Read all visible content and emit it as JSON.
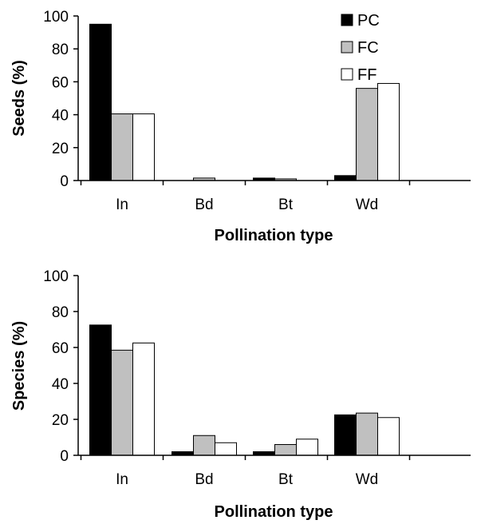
{
  "chart_data": [
    {
      "type": "bar",
      "categories": [
        "In",
        "Bd",
        "Bt",
        "Wd"
      ],
      "series": [
        {
          "name": "PC",
          "color": "#000000",
          "values": [
            95,
            0,
            1.5,
            3
          ]
        },
        {
          "name": "FC",
          "color": "#c0c0c0",
          "values": [
            40.5,
            1.5,
            1,
            56
          ]
        },
        {
          "name": "FF",
          "color": "#ffffff",
          "values": [
            40.5,
            0,
            0,
            59
          ]
        }
      ],
      "xlabel": "Pollination type",
      "ylabel": "Seeds (%)",
      "ylim": [
        0,
        100
      ],
      "yticks": [
        "0",
        "20",
        "40",
        "60",
        "80",
        "100"
      ],
      "legend": "top-right",
      "grid": false
    },
    {
      "type": "bar",
      "categories": [
        "In",
        "Bd",
        "Bt",
        "Wd"
      ],
      "series": [
        {
          "name": "PC",
          "color": "#000000",
          "values": [
            72.5,
            2,
            2,
            22.5
          ]
        },
        {
          "name": "FC",
          "color": "#c0c0c0",
          "values": [
            58.5,
            11,
            6,
            23.5
          ]
        },
        {
          "name": "FF",
          "color": "#ffffff",
          "values": [
            62.5,
            7,
            9,
            21
          ]
        }
      ],
      "xlabel": "Pollination type",
      "ylabel": "Species (%)",
      "ylim": [
        0,
        100
      ],
      "yticks": [
        "0",
        "20",
        "40",
        "60",
        "80",
        "100"
      ],
      "grid": false
    }
  ]
}
